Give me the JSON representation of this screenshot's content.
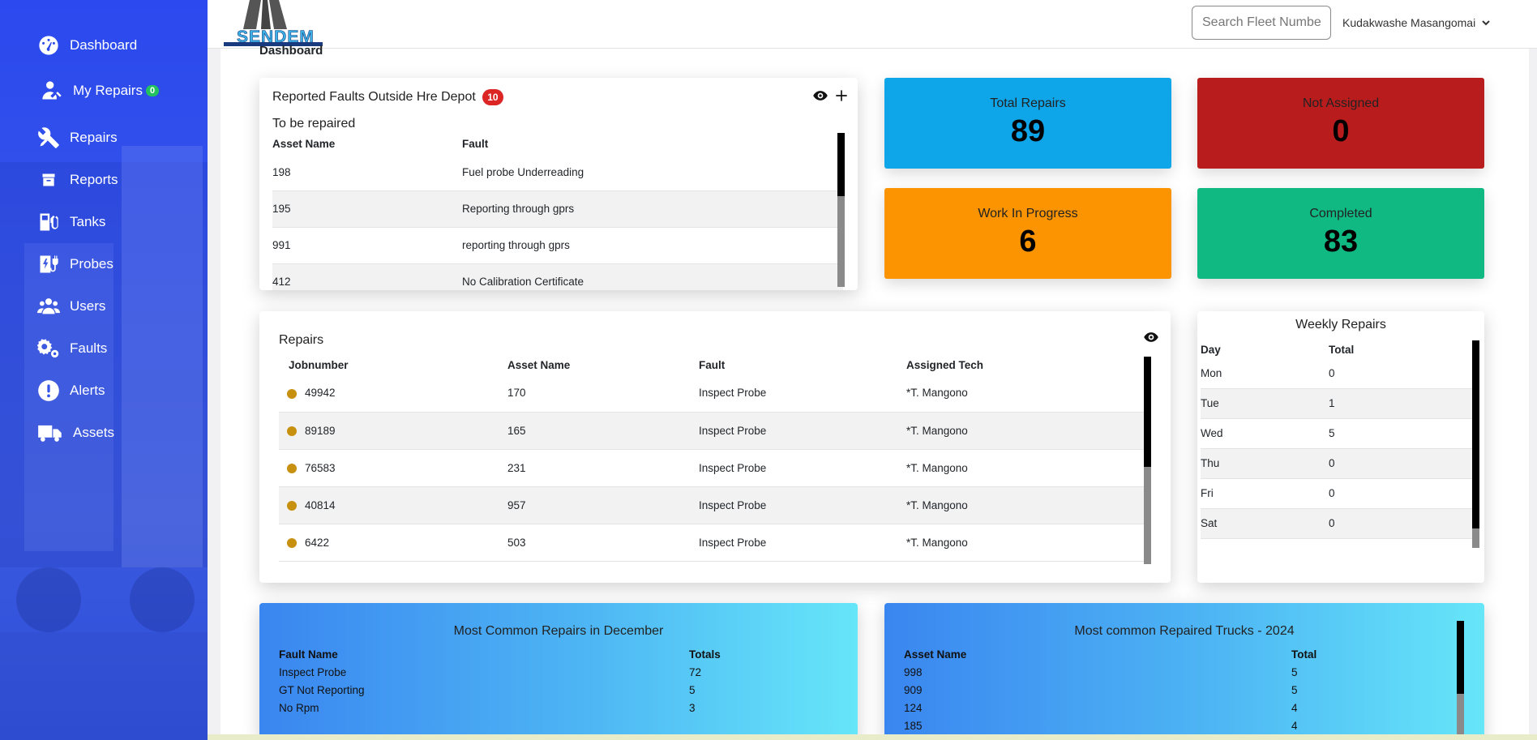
{
  "sidebar": {
    "items": [
      {
        "label": "Dashboard",
        "icon": "dashboard-icon"
      },
      {
        "label": "My Repairs",
        "icon": "user-repair-icon",
        "badge": "0"
      },
      {
        "label": "Repairs",
        "icon": "tools-icon"
      },
      {
        "label": "Reports",
        "icon": "archive-icon"
      },
      {
        "label": "Tanks",
        "icon": "fuel-pump-icon"
      },
      {
        "label": "Probes",
        "icon": "charging-station-icon"
      },
      {
        "label": "Users",
        "icon": "users-icon"
      },
      {
        "label": "Faults",
        "icon": "gears-icon"
      },
      {
        "label": "Alerts",
        "icon": "exclamation-icon"
      },
      {
        "label": "Assets",
        "icon": "truck-icon"
      }
    ]
  },
  "header": {
    "logo_text": "SENDEM",
    "search_placeholder": "Search Fleet Number..",
    "user_name": "Kudakwashe Masangomai"
  },
  "page_title": "Dashboard",
  "faults_card": {
    "title": "Reported Faults Outside Hre Depot",
    "badge": "10",
    "subtitle": "To be repaired",
    "columns": [
      "Asset Name",
      "Fault"
    ],
    "rows": [
      [
        "198",
        "Fuel probe Underreading"
      ],
      [
        "195",
        "Reporting through gprs"
      ],
      [
        "991",
        "reporting through gprs"
      ],
      [
        "412",
        "No Calibration Certificate"
      ]
    ]
  },
  "stats": {
    "total_repairs": {
      "label": "Total Repairs",
      "value": "89",
      "color": "#0ea5e9"
    },
    "not_assigned": {
      "label": "Not Assigned",
      "value": "0",
      "color": "#b91c1c"
    },
    "work_in_progress": {
      "label": "Work In Progress",
      "value": "6",
      "color": "#fb9400"
    },
    "completed": {
      "label": "Completed",
      "value": "83",
      "color": "#10b981"
    }
  },
  "repairs_card": {
    "title": "Repairs",
    "columns": [
      "Jobnumber",
      "Asset Name",
      "Fault",
      "Assigned Tech"
    ],
    "rows": [
      [
        "49942",
        "170",
        "Inspect Probe",
        "*T. Mangono"
      ],
      [
        "89189",
        "165",
        "Inspect Probe",
        "*T. Mangono"
      ],
      [
        "76583",
        "231",
        "Inspect Probe",
        "*T. Mangono"
      ],
      [
        "40814",
        "957",
        "Inspect Probe",
        "*T. Mangono"
      ],
      [
        "6422",
        "503",
        "Inspect Probe",
        "*T. Mangono"
      ]
    ]
  },
  "weekly_card": {
    "title": "Weekly Repairs",
    "columns": [
      "Day",
      "Total"
    ],
    "rows": [
      [
        "Mon",
        "0"
      ],
      [
        "Tue",
        "1"
      ],
      [
        "Wed",
        "5"
      ],
      [
        "Thu",
        "0"
      ],
      [
        "Fri",
        "0"
      ],
      [
        "Sat",
        "0"
      ]
    ]
  },
  "common_repairs": {
    "title": "Most Common Repairs in December",
    "columns": [
      "Fault Name",
      "Totals"
    ],
    "rows": [
      [
        "Inspect Probe",
        "72"
      ],
      [
        "GT Not Reporting",
        "5"
      ],
      [
        "No Rpm",
        "3"
      ]
    ]
  },
  "common_trucks": {
    "title": "Most common Repaired Trucks - 2024",
    "columns": [
      "Asset Name",
      "Total"
    ],
    "rows": [
      [
        "998",
        "5"
      ],
      [
        "909",
        "5"
      ],
      [
        "124",
        "4"
      ],
      [
        "185",
        "4"
      ]
    ]
  }
}
